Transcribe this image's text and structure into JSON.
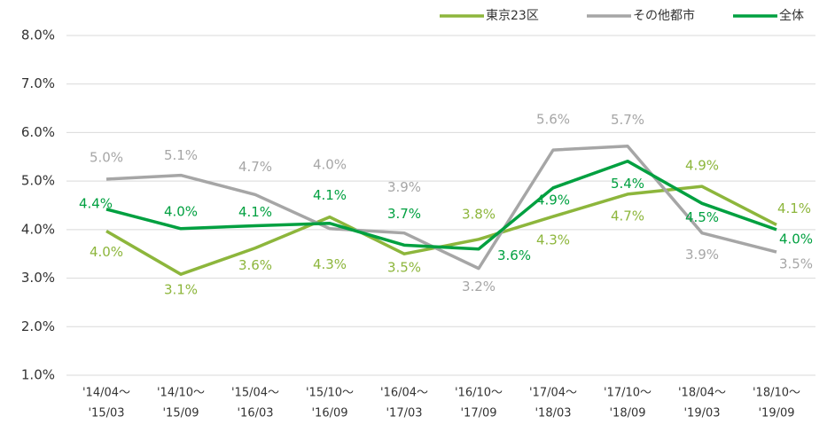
{
  "chart_data": {
    "type": "line",
    "categories": [
      [
        "'14/04～",
        "'15/03"
      ],
      [
        "'14/10～",
        "'15/09"
      ],
      [
        "'15/04～",
        "'16/03"
      ],
      [
        "'15/10～",
        "'16/09"
      ],
      [
        "'16/04～",
        "'17/03"
      ],
      [
        "'16/10～",
        "'17/09"
      ],
      [
        "'17/04～",
        "'18/03"
      ],
      [
        "'17/10～",
        "'18/09"
      ],
      [
        "'18/04～",
        "'19/03"
      ],
      [
        "'18/10～",
        "'19/09"
      ]
    ],
    "series": [
      {
        "name": "東京23区",
        "color": "#8db63c",
        "values": [
          3.97,
          3.08,
          3.62,
          4.26,
          3.5,
          3.8,
          4.27,
          4.73,
          4.89,
          4.1
        ],
        "value_labels": [
          "4.0%",
          "3.1%",
          "3.6%",
          "4.3%",
          "3.5%",
          "3.8%",
          "4.3%",
          "4.7%",
          "4.9%",
          "4.1%"
        ]
      },
      {
        "name": "その他都市",
        "color": "#a6a6a6",
        "values": [
          5.04,
          5.12,
          4.72,
          4.02,
          3.93,
          3.2,
          5.64,
          5.72,
          3.93,
          3.54
        ],
        "value_labels": [
          "5.0%",
          "5.1%",
          "4.7%",
          "4.0%",
          "3.9%",
          "3.2%",
          "5.6%",
          "5.7%",
          "3.9%",
          "3.5%"
        ]
      },
      {
        "name": "全体",
        "color": "#00a040",
        "values": [
          4.42,
          4.02,
          4.08,
          4.13,
          3.68,
          3.6,
          4.86,
          5.41,
          4.54,
          4.0
        ],
        "value_labels": [
          "4.4%",
          "4.0%",
          "4.1%",
          "4.1%",
          "3.7%",
          "3.6%",
          "4.9%",
          "5.4%",
          "4.5%",
          "4.0%"
        ]
      }
    ],
    "ylim": [
      1,
      8
    ],
    "yticks": [
      {
        "value": 1,
        "label": "1.0%"
      },
      {
        "value": 2,
        "label": "2.0%"
      },
      {
        "value": 3,
        "label": "3.0%"
      },
      {
        "value": 4,
        "label": "4.0%"
      },
      {
        "value": 5,
        "label": "5.0%"
      },
      {
        "value": 6,
        "label": "6.0%"
      },
      {
        "value": 7,
        "label": "7.0%"
      },
      {
        "value": 8,
        "label": "8.0%"
      }
    ],
    "grid": true,
    "legend": "top-right"
  }
}
